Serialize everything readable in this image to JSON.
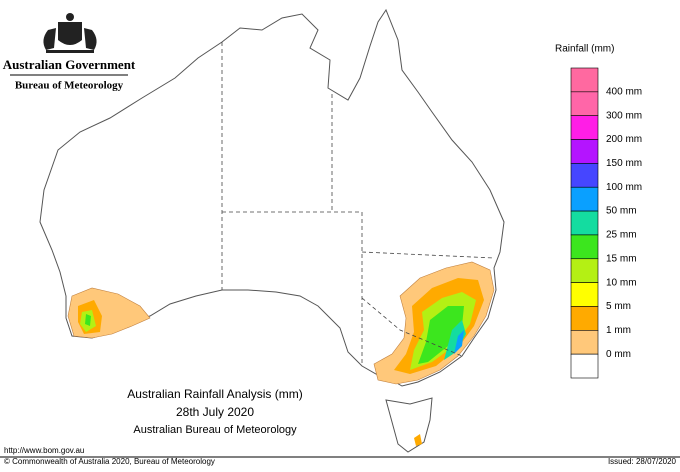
{
  "header": {
    "agency": "Australian Government",
    "bureau": "Bureau of Meteorology"
  },
  "legend": {
    "title": "Rainfall (mm)",
    "items": [
      {
        "label": "400 mm",
        "color": "#ff66a8"
      },
      {
        "label": "300 mm",
        "color": "#ff1ee6"
      },
      {
        "label": "200 mm",
        "color": "#b414ff"
      },
      {
        "label": "150 mm",
        "color": "#4646ff"
      },
      {
        "label": "100 mm",
        "color": "#0aa0ff"
      },
      {
        "label": "50 mm",
        "color": "#14dca0"
      },
      {
        "label": "25 mm",
        "color": "#3ce61e"
      },
      {
        "label": "15 mm",
        "color": "#b4f014"
      },
      {
        "label": "10 mm",
        "color": "#ffff00"
      },
      {
        "label": "5 mm",
        "color": "#ffaa00"
      },
      {
        "label": "1 mm",
        "color": "#ffc87a"
      },
      {
        "label": "0 mm",
        "color": "#ffffff"
      }
    ],
    "top_color": "#ff69a0"
  },
  "caption": {
    "line1": "Australian Rainfall Analysis (mm)",
    "line2": "28th July 2020",
    "line3": "Australian Bureau of Meteorology"
  },
  "footer": {
    "url": "http://www.bom.gov.au",
    "copyright": "© Commonwealth of Australia 2020, Bureau of Meteorology",
    "issued": "Issued: 28/07/2020"
  }
}
